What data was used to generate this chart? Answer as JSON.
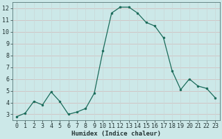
{
  "x": [
    0,
    1,
    2,
    3,
    4,
    5,
    6,
    7,
    8,
    9,
    10,
    11,
    12,
    13,
    14,
    15,
    16,
    17,
    18,
    19,
    20,
    21,
    22,
    23
  ],
  "y": [
    2.8,
    3.1,
    4.1,
    3.8,
    4.9,
    4.1,
    3.0,
    3.2,
    3.5,
    4.8,
    8.4,
    11.6,
    12.1,
    12.1,
    11.6,
    10.8,
    10.5,
    9.5,
    6.7,
    5.1,
    6.0,
    5.4,
    5.2,
    4.4
  ],
  "line_color": "#1a6b5a",
  "marker_color": "#1a6b5a",
  "bg_color": "#cce8e8",
  "grid_h_color": "#d4b8b8",
  "grid_v_color": "#c8d8d8",
  "xlabel": "Humidex (Indice chaleur)",
  "xlim": [
    -0.5,
    23.5
  ],
  "ylim": [
    2.5,
    12.5
  ],
  "yticks": [
    3,
    4,
    5,
    6,
    7,
    8,
    9,
    10,
    11,
    12
  ],
  "xticks": [
    0,
    1,
    2,
    3,
    4,
    5,
    6,
    7,
    8,
    9,
    10,
    11,
    12,
    13,
    14,
    15,
    16,
    17,
    18,
    19,
    20,
    21,
    22,
    23
  ],
  "xlabel_fontsize": 6.5,
  "tick_fontsize": 6.0
}
